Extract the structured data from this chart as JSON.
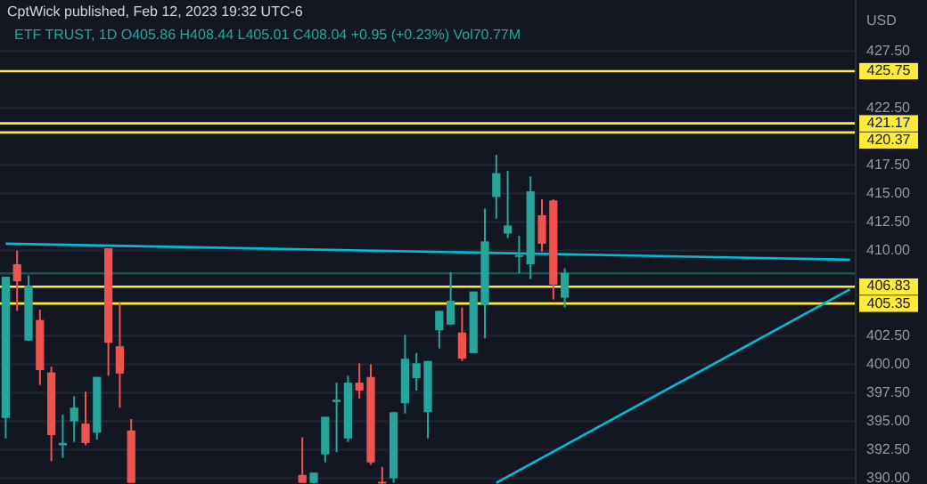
{
  "chart_data": {
    "type": "candlestick",
    "title": "CptWick published, Feb 12, 2023 19:32 UTC-6",
    "subtitle": "ETF TRUST, 1D  O405.86 H408.44 L405.01 C408.04 +0.95 (+0.23%) Vol70.77M",
    "ylabel": "USD",
    "categories": [
      null,
      null,
      null,
      null,
      null,
      null,
      null,
      null,
      null,
      null,
      null,
      null,
      null,
      null,
      null,
      null,
      null,
      null,
      null,
      null,
      null,
      null,
      null,
      null,
      null,
      null,
      null,
      null,
      null,
      null,
      null,
      null,
      null,
      null,
      null,
      null,
      null,
      null,
      null,
      null,
      null,
      null,
      null,
      null,
      null,
      null,
      null,
      null,
      null,
      null,
      null,
      null,
      null,
      null,
      null,
      null,
      null,
      null,
      null,
      null,
      null,
      null,
      null,
      null,
      null,
      null,
      null,
      null,
      null,
      null,
      null,
      null,
      null,
      null,
      null
    ],
    "ohlc": [
      [
        395.3,
        407.7,
        393.5,
        407.7
      ],
      [
        408.8,
        410.0,
        404.7,
        407.3
      ],
      [
        402.1,
        407.8,
        402.1,
        406.9
      ],
      [
        403.9,
        404.8,
        398.2,
        399.5
      ],
      [
        399.3,
        399.8,
        391.5,
        393.8
      ],
      [
        392.9,
        395.6,
        391.8,
        393.1
      ],
      [
        395.0,
        397.2,
        393.2,
        396.2
      ],
      [
        394.8,
        397.6,
        392.9,
        393.1
      ],
      [
        394.0,
        398.9,
        393.4,
        398.9
      ],
      [
        410.2,
        410.2,
        399.0,
        401.9
      ],
      [
        401.6,
        405.4,
        396.2,
        399.2
      ],
      [
        394.2,
        395.2,
        389.6,
        389.6
      ],
      null,
      null,
      null,
      null,
      null,
      null,
      null,
      null,
      null,
      null,
      null,
      null,
      null,
      null,
      [
        390.3,
        393.6,
        389.6,
        389.6
      ],
      [
        389.6,
        390.5,
        389.6,
        390.5
      ],
      [
        392.1,
        395.4,
        391.4,
        395.4
      ],
      [
        396.7,
        398.4,
        392.3,
        396.9
      ],
      [
        393.5,
        399.0,
        393.2,
        398.4
      ],
      [
        398.4,
        400.1,
        397.0,
        397.7
      ],
      [
        398.9,
        400.0,
        391.2,
        391.4
      ],
      [
        389.7,
        391.0,
        389.5,
        389.6
      ],
      [
        390.0,
        395.8,
        389.6,
        395.8
      ],
      [
        396.6,
        402.6,
        395.7,
        400.5
      ],
      [
        398.8,
        401.0,
        397.7,
        400.1
      ],
      [
        395.8,
        400.3,
        393.5,
        400.3
      ],
      [
        403.0,
        404.7,
        401.4,
        404.7
      ],
      [
        403.5,
        408.1,
        403.5,
        405.6
      ],
      [
        402.8,
        405.0,
        400.3,
        400.5
      ],
      [
        401.0,
        406.4,
        401.0,
        406.4
      ],
      [
        405.2,
        413.7,
        402.3,
        410.8
      ],
      [
        414.7,
        418.4,
        412.8,
        416.8
      ],
      [
        411.5,
        417.0,
        411.1,
        412.2
      ],
      [
        409.5,
        411.3,
        408.0,
        409.6
      ],
      [
        408.8,
        416.5,
        407.5,
        415.2
      ],
      [
        413.1,
        414.5,
        409.9,
        410.6
      ],
      [
        414.4,
        414.5,
        405.7,
        407.0
      ],
      [
        405.86,
        408.44,
        405.01,
        408.04
      ],
      null,
      null,
      null,
      null,
      null,
      null,
      null,
      null,
      null,
      null,
      null,
      null,
      null,
      null,
      null,
      null,
      null,
      null,
      null,
      null,
      null,
      null,
      null,
      null,
      null
    ],
    "colors": [
      "#26a69a",
      "#ef5350",
      "#26a69a",
      "#ef5350",
      "#ef5350",
      "#26a69a",
      "#26a69a",
      "#ef5350",
      "#26a69a",
      "#ef5350",
      "#ef5350",
      "#ef5350",
      null,
      null,
      null,
      null,
      null,
      null,
      null,
      null,
      null,
      null,
      null,
      null,
      null,
      null,
      "#ef5350",
      "#26a69a",
      "#26a69a",
      "#26a69a",
      "#26a69a",
      "#ef5350",
      "#ef5350",
      "#ef5350",
      "#26a69a",
      "#26a69a",
      "#26a69a",
      "#26a69a",
      "#26a69a",
      "#26a69a",
      "#ef5350",
      "#26a69a",
      "#26a69a",
      "#26a69a",
      "#26a69a",
      "#26a69a",
      "#26a69a",
      "#ef5350",
      "#ef5350",
      "#26a69a",
      null,
      null,
      null,
      null,
      null,
      null,
      null,
      null,
      null,
      null,
      null,
      null,
      null,
      null,
      null,
      null,
      null,
      null,
      null,
      null,
      null,
      null,
      null,
      null,
      null
    ],
    "series": [
      {
        "type": "line",
        "color": "#00bcd4",
        "values": [
          410.6,
          null,
          null,
          null,
          null,
          null,
          null,
          null,
          null,
          null,
          null,
          null,
          null,
          null,
          null,
          null,
          null,
          null,
          null,
          null,
          null,
          null,
          null,
          null,
          null,
          null,
          null,
          null,
          null,
          null,
          null,
          null,
          null,
          null,
          null,
          null,
          null,
          null,
          null,
          null,
          null,
          null,
          null,
          null,
          null,
          null,
          null,
          null,
          null,
          null,
          null,
          null,
          null,
          null,
          null,
          null,
          null,
          null,
          null,
          null,
          null,
          null,
          null,
          null,
          null,
          null,
          null,
          null,
          null,
          null,
          null,
          null,
          null,
          null,
          409.2
        ]
      },
      {
        "type": "line",
        "color": "#00bcd4",
        "values": [
          null,
          null,
          null,
          null,
          null,
          null,
          null,
          null,
          null,
          null,
          null,
          null,
          null,
          null,
          null,
          null,
          null,
          null,
          null,
          null,
          null,
          null,
          null,
          null,
          null,
          null,
          null,
          null,
          null,
          null,
          null,
          null,
          null,
          null,
          null,
          null,
          null,
          null,
          null,
          null,
          null,
          null,
          null,
          389.6,
          null,
          null,
          null,
          null,
          null,
          null,
          null,
          null,
          null,
          null,
          null,
          null,
          null,
          null,
          null,
          null,
          null,
          null,
          null,
          null,
          null,
          null,
          null,
          null,
          null,
          null,
          null,
          null,
          null,
          null,
          406.6
        ]
      }
    ],
    "ylim": [
      389.5,
      432.0
    ],
    "yticks": [
      {
        "value": 390,
        "label": "390.00"
      },
      {
        "value": 392.5,
        "label": "392.50"
      },
      {
        "value": 395,
        "label": "395.00"
      },
      {
        "value": 397.5,
        "label": "397.50"
      },
      {
        "value": 400,
        "label": "400.00"
      },
      {
        "value": 402.5,
        "label": "402.50"
      },
      {
        "value": 410,
        "label": "410.00"
      },
      {
        "value": 412.5,
        "label": "412.50"
      },
      {
        "value": 415,
        "label": "415.00"
      },
      {
        "value": 417.5,
        "label": "417.50"
      },
      {
        "value": 422.5,
        "label": "422.50"
      },
      {
        "value": 427.5,
        "label": "427.50"
      }
    ],
    "tick_labels": "y",
    "grid": "y",
    "ref_lines": [
      {
        "axis": "y",
        "value": 425.75,
        "label": "425.75",
        "color": "#ffeb3b"
      },
      {
        "axis": "y",
        "value": 421.17,
        "label": "421.17",
        "color": "#ffeb3b"
      },
      {
        "axis": "y",
        "value": 420.37,
        "label": "420.37",
        "color": "#ffeb3b"
      },
      {
        "axis": "y",
        "value": 408.0,
        "color": "#1f4f4f"
      },
      {
        "axis": "y",
        "value": 406.83,
        "label": "406.83",
        "color": "#ffeb3b"
      },
      {
        "axis": "y",
        "value": 405.35,
        "label": "405.35",
        "color": "#ffeb3b"
      }
    ]
  }
}
